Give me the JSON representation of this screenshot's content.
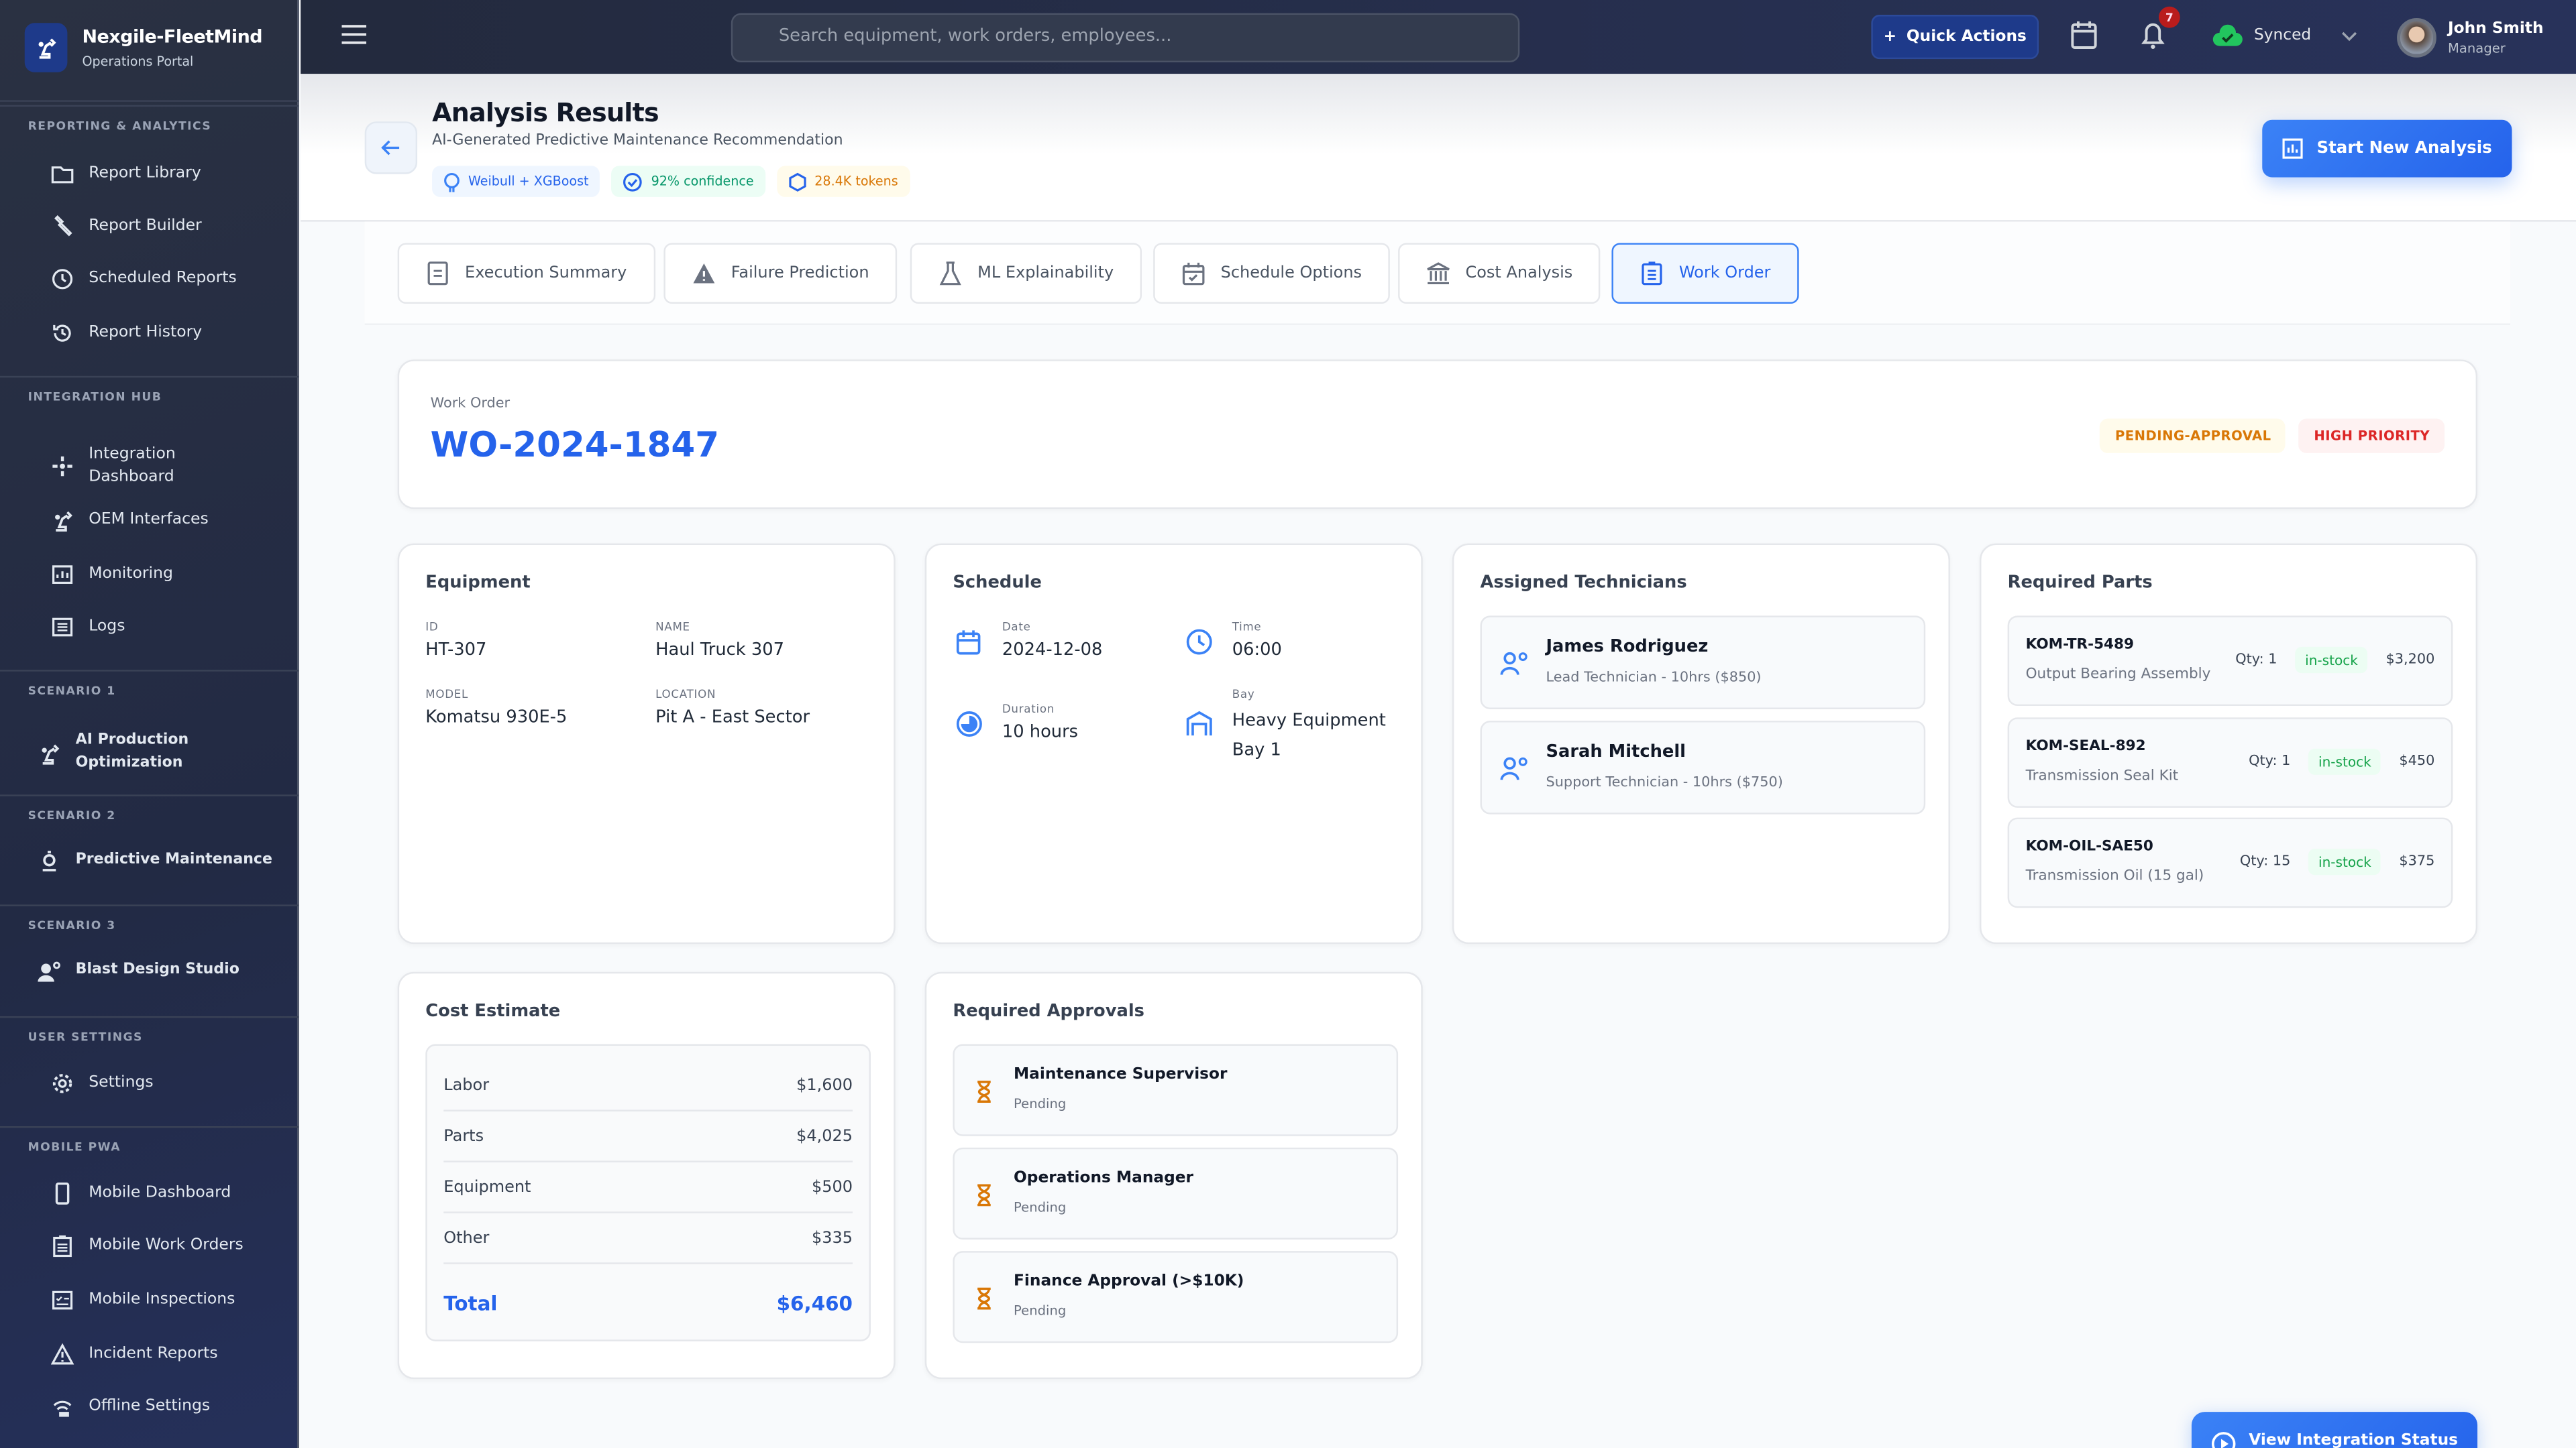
{
  "app": {
    "name": "Nexgile-FleetMind",
    "subtitle": "Operations Portal"
  },
  "sidebar": {
    "sections": [
      {
        "label": "REPORTING & ANALYTICS",
        "items": [
          {
            "label": "Report Library",
            "icon": "folder-icon"
          },
          {
            "label": "Report Builder",
            "icon": "wrench-icon"
          },
          {
            "label": "Scheduled Reports",
            "icon": "clock-icon"
          },
          {
            "label": "Report History",
            "icon": "history-icon"
          }
        ]
      },
      {
        "label": "INTEGRATION HUB",
        "items": [
          {
            "label": "Integration Dashboard",
            "icon": "hub-icon"
          },
          {
            "label": "OEM Interfaces",
            "icon": "robot-arm-icon"
          },
          {
            "label": "Monitoring",
            "icon": "monitor-icon"
          },
          {
            "label": "Logs",
            "icon": "logs-icon"
          }
        ]
      },
      {
        "label": "SCENARIO 1",
        "items": [
          {
            "label": "AI Production Optimization",
            "icon": "robot-arm-icon"
          }
        ]
      },
      {
        "label": "SCENARIO 2",
        "items": [
          {
            "label": "Predictive Maintenance",
            "icon": "microscope-icon"
          }
        ]
      },
      {
        "label": "SCENARIO 3",
        "items": [
          {
            "label": "Blast Design Studio",
            "icon": "worker-gear-icon"
          }
        ]
      },
      {
        "label": "USER SETTINGS",
        "items": [
          {
            "label": "Settings",
            "icon": "gear-icon"
          }
        ]
      },
      {
        "label": "MOBILE PWA",
        "items": [
          {
            "label": "Mobile Dashboard",
            "icon": "phone-icon"
          },
          {
            "label": "Mobile Work Orders",
            "icon": "clipboard-icon"
          },
          {
            "label": "Mobile Inspections",
            "icon": "checklist-icon"
          },
          {
            "label": "Incident Reports",
            "icon": "warning-icon"
          },
          {
            "label": "Offline Settings",
            "icon": "offline-icon"
          }
        ]
      }
    ]
  },
  "header": {
    "search_placeholder": "Search equipment, work orders, employees...",
    "quick_actions": "Quick Actions",
    "notifications": "7",
    "sync_status": "Synced",
    "user": {
      "name": "John Smith",
      "role": "Manager"
    }
  },
  "page": {
    "title": "Analysis Results",
    "subtitle": "AI-Generated Predictive Maintenance Recommendation",
    "chips": [
      {
        "label": "Weibull + XGBoost",
        "color": "#2563eb"
      },
      {
        "label": "92% confidence",
        "color": "#059669"
      },
      {
        "label": "28.4K tokens",
        "color": "#d97706"
      }
    ],
    "start_button": "Start New Analysis"
  },
  "tabs": [
    {
      "label": "Execution Summary",
      "active": false
    },
    {
      "label": "Failure Prediction",
      "active": false
    },
    {
      "label": "ML Explainability",
      "active": false
    },
    {
      "label": "Schedule Options",
      "active": false
    },
    {
      "label": "Cost Analysis",
      "active": false
    },
    {
      "label": "Work Order",
      "active": true
    }
  ],
  "work_order": {
    "label": "Work Order",
    "id": "WO-2024-1847",
    "status": "PENDING-APPROVAL",
    "priority": "HIGH PRIORITY"
  },
  "equipment": {
    "title": "Equipment",
    "id_label": "ID",
    "id": "HT-307",
    "name_label": "NAME",
    "name": "Haul Truck 307",
    "model_label": "MODEL",
    "model": "Komatsu 930E-5",
    "location_label": "LOCATION",
    "location": "Pit A - East Sector"
  },
  "schedule": {
    "title": "Schedule",
    "date_label": "Date",
    "date": "2024-12-08",
    "time_label": "Time",
    "time": "06:00",
    "duration_label": "Duration",
    "duration": "10 hours",
    "bay_label": "Bay",
    "bay": "Heavy Equipment Bay 1"
  },
  "technicians": {
    "title": "Assigned Technicians",
    "items": [
      {
        "name": "James Rodriguez",
        "detail": "Lead Technician - 10hrs ($850)"
      },
      {
        "name": "Sarah Mitchell",
        "detail": "Support Technician - 10hrs ($750)"
      }
    ]
  },
  "parts": {
    "title": "Required Parts",
    "items": [
      {
        "sku": "KOM-TR-5489",
        "name": "Output Bearing Assembly",
        "qty": "Qty: 1",
        "stock": "in-stock",
        "price": "$3,200"
      },
      {
        "sku": "KOM-SEAL-892",
        "name": "Transmission Seal Kit",
        "qty": "Qty: 1",
        "stock": "in-stock",
        "price": "$450"
      },
      {
        "sku": "KOM-OIL-SAE50",
        "name": "Transmission Oil (15 gal)",
        "qty": "Qty: 15",
        "stock": "in-stock",
        "price": "$375"
      }
    ]
  },
  "cost": {
    "title": "Cost Estimate",
    "rows": [
      {
        "label": "Labor",
        "value": "$1,600"
      },
      {
        "label": "Parts",
        "value": "$4,025"
      },
      {
        "label": "Equipment",
        "value": "$500"
      },
      {
        "label": "Other",
        "value": "$335"
      }
    ],
    "total_label": "Total",
    "total": "$6,460"
  },
  "approvals": {
    "title": "Required Approvals",
    "items": [
      {
        "role": "Maintenance Supervisor",
        "status": "Pending"
      },
      {
        "role": "Operations Manager",
        "status": "Pending"
      },
      {
        "role": "Finance Approval (>$10K)",
        "status": "Pending"
      }
    ]
  },
  "footer_button": "View Integration Status",
  "colors": {
    "accent": "#2563eb",
    "sidebar": "#242c40",
    "success": "#16a34a",
    "warning": "#d97706",
    "danger": "#dc2626"
  }
}
